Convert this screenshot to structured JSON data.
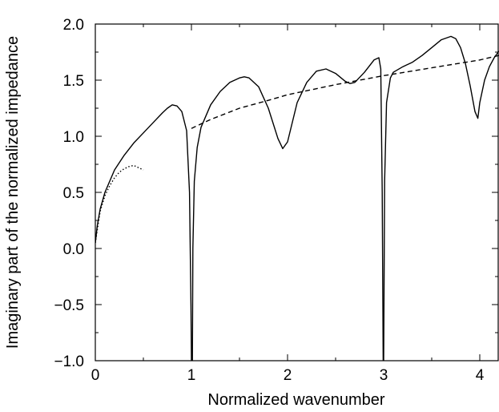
{
  "chart_data": {
    "type": "line",
    "xlabel": "Normalized wavenumber",
    "ylabel": "Imaginary part of the normalized impedance",
    "xlim": [
      0,
      4.2
    ],
    "ylim": [
      -1.0,
      2.0
    ],
    "x_ticks": [
      {
        "value": 0,
        "label": "0"
      },
      {
        "value": 1,
        "label": "1"
      },
      {
        "value": 2,
        "label": "2"
      },
      {
        "value": 3,
        "label": "3"
      },
      {
        "value": 4,
        "label": "4"
      }
    ],
    "y_ticks": [
      {
        "value": -1.0,
        "label": "−1.0"
      },
      {
        "value": -0.5,
        "label": "−0.5"
      },
      {
        "value": 0.0,
        "label": "0.0"
      },
      {
        "value": 0.5,
        "label": "0.5"
      },
      {
        "value": 1.0,
        "label": "1.0"
      },
      {
        "value": 1.5,
        "label": "1.5"
      },
      {
        "value": 2.0,
        "label": "2.0"
      }
    ],
    "grid": false,
    "series": [
      {
        "style": "solid",
        "segments": [
          [
            [
              0.0,
              0.05
            ],
            [
              0.02,
              0.2
            ],
            [
              0.05,
              0.35
            ],
            [
              0.1,
              0.5
            ],
            [
              0.2,
              0.7
            ],
            [
              0.3,
              0.83
            ],
            [
              0.4,
              0.94
            ],
            [
              0.5,
              1.03
            ],
            [
              0.6,
              1.12
            ],
            [
              0.7,
              1.21
            ],
            [
              0.75,
              1.25
            ],
            [
              0.8,
              1.28
            ],
            [
              0.85,
              1.27
            ],
            [
              0.9,
              1.22
            ],
            [
              0.95,
              1.05
            ],
            [
              0.98,
              0.5
            ],
            [
              0.995,
              -0.5
            ],
            [
              1.0,
              -1.0
            ]
          ],
          [
            [
              1.01,
              -1.0
            ],
            [
              1.015,
              0.0
            ],
            [
              1.03,
              0.6
            ],
            [
              1.06,
              0.9
            ],
            [
              1.1,
              1.08
            ],
            [
              1.2,
              1.28
            ],
            [
              1.3,
              1.4
            ],
            [
              1.4,
              1.48
            ],
            [
              1.5,
              1.52
            ],
            [
              1.55,
              1.53
            ],
            [
              1.6,
              1.52
            ],
            [
              1.7,
              1.44
            ],
            [
              1.8,
              1.25
            ],
            [
              1.9,
              0.98
            ],
            [
              1.95,
              0.89
            ],
            [
              2.0,
              0.95
            ],
            [
              2.1,
              1.3
            ],
            [
              2.2,
              1.48
            ],
            [
              2.3,
              1.58
            ],
            [
              2.4,
              1.6
            ],
            [
              2.5,
              1.56
            ],
            [
              2.6,
              1.49
            ],
            [
              2.65,
              1.47
            ],
            [
              2.7,
              1.48
            ],
            [
              2.8,
              1.57
            ],
            [
              2.9,
              1.68
            ],
            [
              2.95,
              1.7
            ],
            [
              2.97,
              1.6
            ],
            [
              2.985,
              0.5
            ],
            [
              2.995,
              -1.0
            ]
          ],
          [
            [
              3.0,
              -1.0
            ],
            [
              3.01,
              0.6
            ],
            [
              3.03,
              1.3
            ],
            [
              3.07,
              1.52
            ],
            [
              3.1,
              1.57
            ],
            [
              3.2,
              1.62
            ],
            [
              3.3,
              1.66
            ],
            [
              3.4,
              1.72
            ],
            [
              3.5,
              1.79
            ],
            [
              3.6,
              1.86
            ],
            [
              3.7,
              1.89
            ],
            [
              3.75,
              1.87
            ],
            [
              3.8,
              1.79
            ],
            [
              3.85,
              1.65
            ],
            [
              3.9,
              1.45
            ],
            [
              3.95,
              1.22
            ],
            [
              3.98,
              1.16
            ],
            [
              4.0,
              1.3
            ],
            [
              4.05,
              1.5
            ],
            [
              4.1,
              1.62
            ],
            [
              4.15,
              1.7
            ],
            [
              4.2,
              1.76
            ]
          ]
        ]
      },
      {
        "style": "dashed",
        "segments": [
          [
            [
              1.0,
              1.07
            ],
            [
              1.2,
              1.15
            ],
            [
              1.5,
              1.25
            ],
            [
              1.8,
              1.32
            ],
            [
              2.0,
              1.37
            ],
            [
              2.5,
              1.46
            ],
            [
              3.0,
              1.54
            ],
            [
              3.5,
              1.61
            ],
            [
              4.0,
              1.68
            ],
            [
              4.2,
              1.72
            ]
          ]
        ]
      },
      {
        "style": "dotted",
        "segments": [
          [
            [
              0.0,
              0.05
            ],
            [
              0.05,
              0.33
            ],
            [
              0.1,
              0.47
            ],
            [
              0.15,
              0.56
            ],
            [
              0.2,
              0.63
            ],
            [
              0.25,
              0.68
            ],
            [
              0.3,
              0.71
            ],
            [
              0.35,
              0.73
            ],
            [
              0.4,
              0.74
            ],
            [
              0.45,
              0.72
            ],
            [
              0.5,
              0.7
            ]
          ]
        ]
      }
    ]
  }
}
